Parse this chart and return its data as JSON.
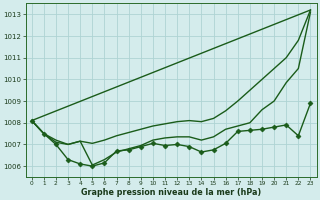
{
  "background_color": "#d4ecec",
  "grid_color": "#aed4d4",
  "line_color": "#1a5c1a",
  "x_labels": [
    "0",
    "1",
    "2",
    "3",
    "4",
    "5",
    "6",
    "7",
    "8",
    "9",
    "10",
    "11",
    "12",
    "13",
    "14",
    "15",
    "16",
    "17",
    "18",
    "19",
    "20",
    "21",
    "22",
    "23"
  ],
  "xlabel": "Graphe pression niveau de la mer (hPa)",
  "ylim": [
    1005.5,
    1013.5
  ],
  "yticks": [
    1006,
    1007,
    1008,
    1009,
    1010,
    1011,
    1012,
    1013
  ],
  "series": [
    {
      "x": [
        0,
        1,
        2,
        3,
        4,
        5,
        6,
        7,
        8,
        9,
        10,
        11,
        12,
        13,
        14,
        15,
        16,
        17,
        18,
        19,
        20,
        21,
        22,
        23
      ],
      "y": [
        1008.1,
        1007.5,
        1007.0,
        1006.3,
        1006.1,
        1006.0,
        1006.15,
        1006.7,
        1006.75,
        1006.9,
        1007.05,
        1006.95,
        1007.0,
        1006.9,
        1006.65,
        1006.75,
        1007.05,
        1007.6,
        1007.65,
        1007.7,
        1007.8,
        1007.9,
        1007.4,
        1008.9
      ],
      "marker": "D",
      "markersize": 2.5,
      "linewidth": 1.0
    },
    {
      "x": [
        0,
        23
      ],
      "y": [
        1008.1,
        1013.2
      ],
      "marker": null,
      "markersize": 0,
      "linewidth": 1.0
    },
    {
      "x": [
        0,
        1,
        2,
        3,
        4,
        5,
        6,
        7,
        8,
        9,
        10,
        11,
        12,
        13,
        14,
        15,
        16,
        17,
        18,
        19,
        20,
        21,
        22,
        23
      ],
      "y": [
        1008.1,
        1007.5,
        1007.1,
        1007.0,
        1007.15,
        1007.05,
        1007.2,
        1007.4,
        1007.55,
        1007.7,
        1007.85,
        1007.95,
        1008.05,
        1008.1,
        1008.05,
        1008.2,
        1008.55,
        1009.0,
        1009.5,
        1010.0,
        1010.5,
        1011.0,
        1011.8,
        1013.2
      ],
      "marker": null,
      "markersize": 0,
      "linewidth": 1.0
    },
    {
      "x": [
        0,
        1,
        2,
        3,
        4,
        5,
        6,
        7,
        8,
        9,
        10,
        11,
        12,
        13,
        14,
        15,
        16,
        17,
        18,
        19,
        20,
        21,
        22,
        23
      ],
      "y": [
        1008.1,
        1007.5,
        1007.2,
        1007.0,
        1007.15,
        1006.05,
        1006.3,
        1006.65,
        1006.8,
        1006.95,
        1007.2,
        1007.3,
        1007.35,
        1007.35,
        1007.2,
        1007.35,
        1007.7,
        1007.85,
        1008.0,
        1008.6,
        1009.0,
        1009.85,
        1010.5,
        1013.1
      ],
      "marker": null,
      "markersize": 0,
      "linewidth": 1.0
    }
  ]
}
